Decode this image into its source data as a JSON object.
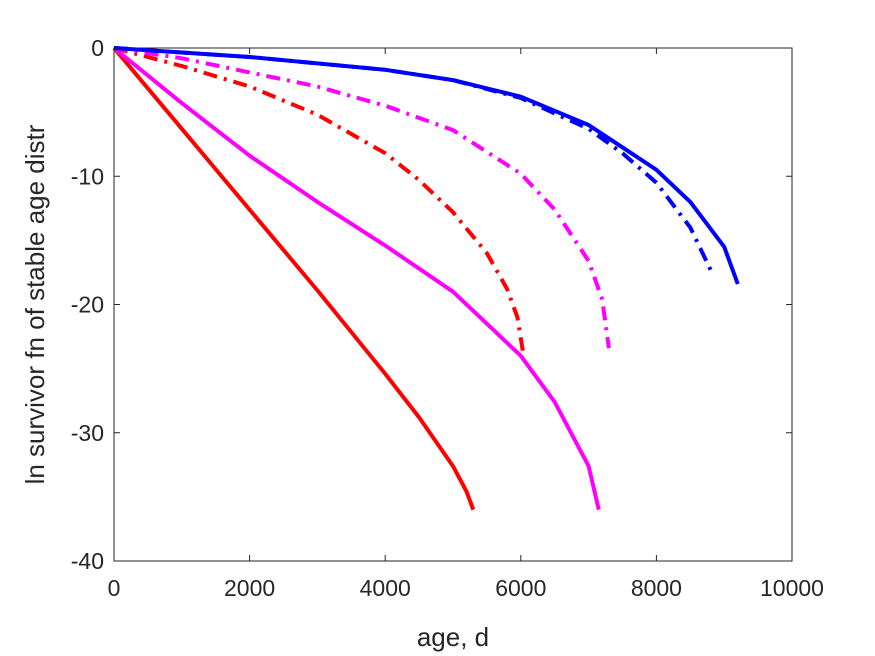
{
  "chart_data": {
    "type": "line",
    "title": "",
    "xlabel": "age, d",
    "ylabel": "ln survivor fn of stable age distr",
    "xlim": [
      0,
      10000
    ],
    "ylim": [
      -40,
      0
    ],
    "xticks": [
      0,
      2000,
      4000,
      6000,
      8000,
      10000
    ],
    "yticks": [
      0,
      -10,
      -20,
      -30,
      -40
    ],
    "xtick_labels": [
      "0",
      "2000",
      "4000",
      "6000",
      "8000",
      "10000"
    ],
    "ytick_labels": [
      "0",
      "-10",
      "-20",
      "-30",
      "-40"
    ],
    "grid": false,
    "legend": "none",
    "series": [
      {
        "color": "#ff0000",
        "style": "solid",
        "points": [
          [
            0,
            0
          ],
          [
            1000,
            -6.3
          ],
          [
            2000,
            -12.6
          ],
          [
            3000,
            -18.9
          ],
          [
            4000,
            -25.4
          ],
          [
            4500,
            -28.8
          ],
          [
            5000,
            -32.6
          ],
          [
            5200,
            -34.6
          ],
          [
            5300,
            -36.0
          ]
        ]
      },
      {
        "color": "#ff00ff",
        "style": "solid",
        "points": [
          [
            0,
            0
          ],
          [
            1000,
            -4.3
          ],
          [
            2000,
            -8.4
          ],
          [
            3000,
            -12.0
          ],
          [
            4000,
            -15.4
          ],
          [
            5000,
            -19.0
          ],
          [
            6000,
            -24.0
          ],
          [
            6500,
            -27.6
          ],
          [
            7000,
            -32.6
          ],
          [
            7150,
            -36.0
          ]
        ]
      },
      {
        "color": "#ff0000",
        "style": "dashdot",
        "points": [
          [
            0,
            0
          ],
          [
            1000,
            -1.4
          ],
          [
            2000,
            -3.0
          ],
          [
            3000,
            -5.2
          ],
          [
            4000,
            -8.2
          ],
          [
            4500,
            -10.3
          ],
          [
            5000,
            -12.8
          ],
          [
            5500,
            -16.0
          ],
          [
            5800,
            -18.8
          ],
          [
            5950,
            -21.0
          ],
          [
            6030,
            -23.6
          ]
        ]
      },
      {
        "color": "#ff00ff",
        "style": "dashdot",
        "points": [
          [
            0,
            0
          ],
          [
            1000,
            -0.8
          ],
          [
            2000,
            -1.9
          ],
          [
            3000,
            -3.0
          ],
          [
            4000,
            -4.5
          ],
          [
            5000,
            -6.4
          ],
          [
            6000,
            -9.8
          ],
          [
            6500,
            -12.6
          ],
          [
            7000,
            -16.6
          ],
          [
            7200,
            -19.6
          ],
          [
            7300,
            -23.4
          ]
        ]
      },
      {
        "color": "#0000ff",
        "style": "solid",
        "points": [
          [
            0,
            0
          ],
          [
            2000,
            -0.7
          ],
          [
            4000,
            -1.7
          ],
          [
            5000,
            -2.5
          ],
          [
            6000,
            -3.8
          ],
          [
            7000,
            -6.0
          ],
          [
            8000,
            -9.5
          ],
          [
            8500,
            -12.0
          ],
          [
            9000,
            -15.5
          ],
          [
            9200,
            -18.4
          ]
        ]
      },
      {
        "color": "#0000ff",
        "style": "dashdot",
        "points": [
          [
            0,
            0
          ],
          [
            2000,
            -0.7
          ],
          [
            4000,
            -1.7
          ],
          [
            5000,
            -2.5
          ],
          [
            6000,
            -3.9
          ],
          [
            7000,
            -6.3
          ],
          [
            7500,
            -8.2
          ],
          [
            8000,
            -10.5
          ],
          [
            8500,
            -14.0
          ],
          [
            8800,
            -17.3
          ]
        ]
      }
    ]
  }
}
